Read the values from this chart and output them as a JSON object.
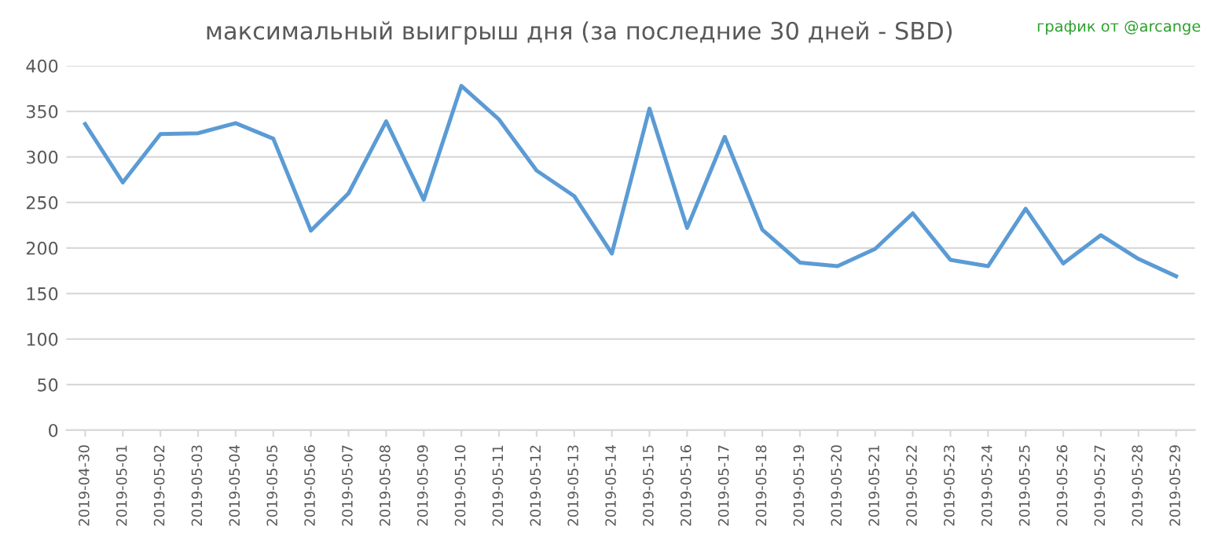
{
  "chart_data": {
    "type": "line",
    "title": "максимальный выигрыш дня (за последние 30 дней - SBD)",
    "annotations": [
      "график от @arcange"
    ],
    "categories": [
      "2019-04-30",
      "2019-05-01",
      "2019-05-02",
      "2019-05-03",
      "2019-05-04",
      "2019-05-05",
      "2019-05-06",
      "2019-05-07",
      "2019-05-08",
      "2019-05-09",
      "2019-05-10",
      "2019-05-11",
      "2019-05-12",
      "2019-05-13",
      "2019-05-14",
      "2019-05-15",
      "2019-05-16",
      "2019-05-17",
      "2019-05-18",
      "2019-05-19",
      "2019-05-20",
      "2019-05-21",
      "2019-05-22",
      "2019-05-23",
      "2019-05-24",
      "2019-05-25",
      "2019-05-26",
      "2019-05-27",
      "2019-05-28",
      "2019-05-29"
    ],
    "series": [
      {
        "color": "#5b9bd5",
        "values": [
          336,
          272,
          325,
          326,
          337,
          320,
          219,
          260,
          339,
          253,
          378,
          341,
          285,
          257,
          194,
          353,
          222,
          322,
          220,
          184,
          180,
          199,
          238,
          187,
          180,
          243,
          183,
          214,
          188,
          169
        ]
      }
    ],
    "ylim": [
      0,
      400
    ],
    "yticks": [
      0,
      50,
      100,
      150,
      200,
      250,
      300,
      350,
      400
    ],
    "grid": "y",
    "legend": false,
    "marker": "none",
    "line_style": "solid"
  }
}
